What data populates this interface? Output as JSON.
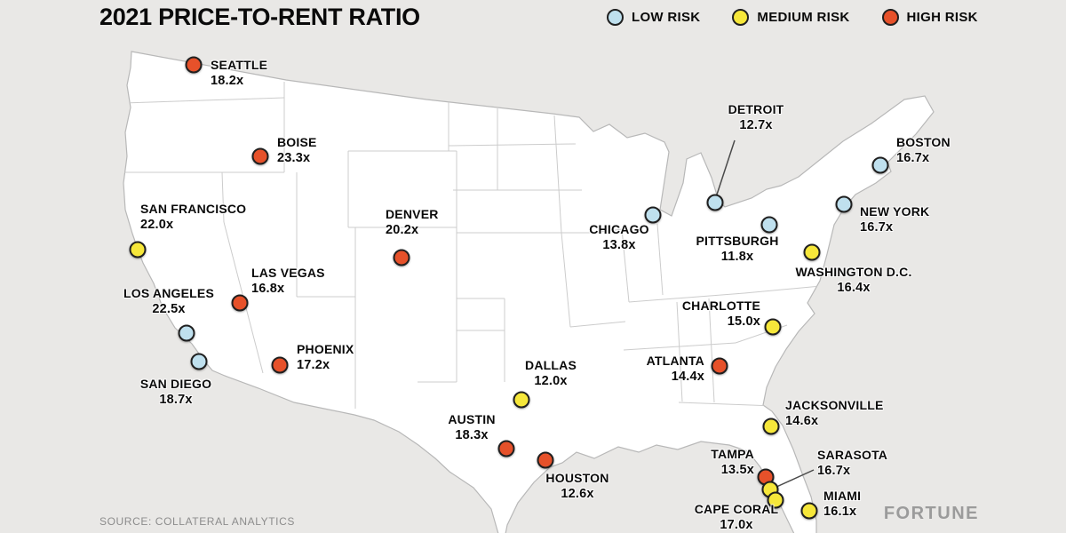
{
  "title": "2021 PRICE-TO-RENT RATIO",
  "source": "SOURCE: COLLATERAL ANALYTICS",
  "brand": "FORTUNE",
  "legend": [
    {
      "label": "LOW RISK",
      "risk": "low"
    },
    {
      "label": "MEDIUM RISK",
      "risk": "medium"
    },
    {
      "label": "HIGH RISK",
      "risk": "high"
    }
  ],
  "colors": {
    "low": "#bfe0ee",
    "medium": "#f6e73a",
    "high": "#e6512a",
    "dot_border": "#1f1f1f",
    "leader": "#4a4a4a",
    "map_fill": "#ffffff",
    "map_stroke": "#b8b8b8",
    "state_line": "#cccccc",
    "background": "#e9e8e6"
  },
  "chart_data": {
    "type": "map",
    "region": "United States",
    "title": "2021 PRICE-TO-RENT RATIO",
    "unit": "price-to-rent ratio (x)",
    "risk_levels": [
      "LOW RISK",
      "MEDIUM RISK",
      "HIGH RISK"
    ],
    "cities": [
      {
        "name": "SEATTLE",
        "value": "18.2x",
        "ratio": 18.2,
        "risk": "high",
        "dot": [
          218,
          73
        ],
        "label": [
          237,
          64
        ],
        "align": "left"
      },
      {
        "name": "BOISE",
        "value": "23.3x",
        "ratio": 23.3,
        "risk": "high",
        "dot": [
          293,
          176
        ],
        "label": [
          312,
          151
        ],
        "align": "left"
      },
      {
        "name": "SAN FRANCISCO",
        "value": "22.0x",
        "ratio": 22.0,
        "risk": "medium",
        "dot": [
          155,
          281
        ],
        "label": [
          158,
          226
        ],
        "align": "left"
      },
      {
        "name": "DENVER",
        "value": "20.2x",
        "ratio": 20.2,
        "risk": "high",
        "dot": [
          452,
          290
        ],
        "label": [
          434,
          232
        ],
        "align": "left"
      },
      {
        "name": "LAS VEGAS",
        "value": "16.8x",
        "ratio": 16.8,
        "risk": "high",
        "dot": [
          270,
          341
        ],
        "label": [
          283,
          298
        ],
        "align": "left"
      },
      {
        "name": "LOS ANGELES",
        "value": "22.5x",
        "ratio": 22.5,
        "risk": "low",
        "dot": [
          210,
          375
        ],
        "label": [
          190,
          321
        ],
        "align": "center"
      },
      {
        "name": "SAN DIEGO",
        "value": "18.7x",
        "ratio": 18.7,
        "risk": "low",
        "dot": [
          224,
          407
        ],
        "label": [
          198,
          423
        ],
        "align": "center"
      },
      {
        "name": "PHOENIX",
        "value": "17.2x",
        "ratio": 17.2,
        "risk": "high",
        "dot": [
          315,
          411
        ],
        "label": [
          334,
          384
        ],
        "align": "left"
      },
      {
        "name": "DALLAS",
        "value": "12.0x",
        "ratio": 12.0,
        "risk": "medium",
        "dot": [
          587,
          450
        ],
        "label": [
          620,
          402
        ],
        "align": "center"
      },
      {
        "name": "AUSTIN",
        "value": "18.3x",
        "ratio": 18.3,
        "risk": "high",
        "dot": [
          570,
          505
        ],
        "label": [
          531,
          463
        ],
        "align": "center"
      },
      {
        "name": "HOUSTON",
        "value": "12.6x",
        "ratio": 12.6,
        "risk": "high",
        "dot": [
          614,
          518
        ],
        "label": [
          650,
          529
        ],
        "align": "center"
      },
      {
        "name": "CHICAGO",
        "value": "13.8x",
        "ratio": 13.8,
        "risk": "low",
        "dot": [
          735,
          242
        ],
        "label": [
          697,
          249
        ],
        "align": "center"
      },
      {
        "name": "DETROIT",
        "value": "12.7x",
        "ratio": 12.7,
        "risk": "low",
        "dot": [
          805,
          228
        ],
        "label": [
          851,
          114
        ],
        "align": "center",
        "leader": [
          827,
          158,
          806,
          222
        ]
      },
      {
        "name": "PITTSBURGH",
        "value": "11.8x",
        "ratio": 11.8,
        "risk": "low",
        "dot": [
          866,
          253
        ],
        "label": [
          830,
          262
        ],
        "align": "center"
      },
      {
        "name": "BOSTON",
        "value": "16.7x",
        "ratio": 16.7,
        "risk": "low",
        "dot": [
          991,
          186
        ],
        "label": [
          1009,
          151
        ],
        "align": "left"
      },
      {
        "name": "NEW YORK",
        "value": "16.7x",
        "ratio": 16.7,
        "risk": "low",
        "dot": [
          950,
          230
        ],
        "label": [
          968,
          229
        ],
        "align": "left"
      },
      {
        "name": "WASHINGTON D.C.",
        "value": "16.4x",
        "ratio": 16.4,
        "risk": "medium",
        "dot": [
          914,
          284
        ],
        "label": [
          961,
          297
        ],
        "align": "center"
      },
      {
        "name": "CHARLOTTE",
        "value": "15.0x",
        "ratio": 15.0,
        "risk": "medium",
        "dot": [
          870,
          368
        ],
        "label": [
          856,
          335
        ],
        "align": "right"
      },
      {
        "name": "ATLANTA",
        "value": "14.4x",
        "ratio": 14.4,
        "risk": "high",
        "dot": [
          810,
          412
        ],
        "label": [
          793,
          397
        ],
        "align": "right"
      },
      {
        "name": "JACKSONVILLE",
        "value": "14.6x",
        "ratio": 14.6,
        "risk": "medium",
        "dot": [
          868,
          480
        ],
        "label": [
          884,
          447
        ],
        "align": "left"
      },
      {
        "name": "TAMPA",
        "value": "13.5x",
        "ratio": 13.5,
        "risk": "high",
        "dot": [
          862,
          537
        ],
        "label": [
          849,
          502
        ],
        "align": "right"
      },
      {
        "name": "SARASOTA",
        "value": "16.7x",
        "ratio": 16.7,
        "risk": "medium",
        "dot": [
          867,
          551
        ],
        "label": [
          920,
          503
        ],
        "align": "left",
        "leader": [
          916,
          529,
          872,
          549
        ]
      },
      {
        "name": "CAPE CORAL",
        "value": "17.0x",
        "ratio": 17.0,
        "risk": "medium",
        "dot": [
          873,
          563
        ],
        "label": [
          829,
          564
        ],
        "align": "center"
      },
      {
        "name": "MIAMI",
        "value": "16.1x",
        "ratio": 16.1,
        "risk": "medium",
        "dot": [
          911,
          575
        ],
        "label": [
          927,
          549
        ],
        "align": "left"
      }
    ]
  }
}
